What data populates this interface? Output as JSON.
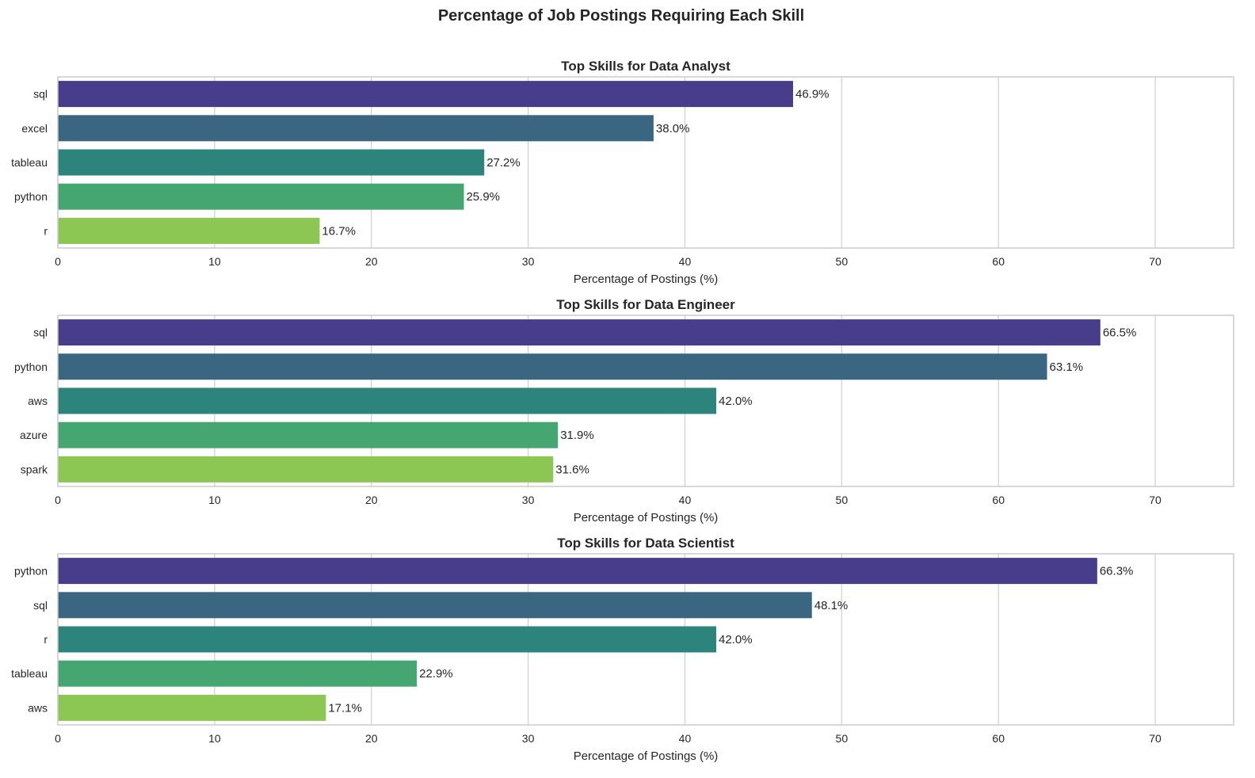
{
  "chart_data": {
    "type": "bar",
    "orientation": "horizontal",
    "title": "Percentage of Job Postings Requiring Each Skill",
    "grid": true,
    "colors": [
      "#483d8b",
      "#3b6682",
      "#2d847d",
      "#45a671",
      "#8cc753"
    ],
    "axis_color": "#cccccc",
    "grid_color": "#cfcfcf",
    "xticks": [
      "0",
      "10",
      "20",
      "30",
      "40",
      "50",
      "60",
      "70"
    ],
    "panels": [
      {
        "title": "Top Skills for Data Analyst",
        "xlabel": "Percentage of Postings (%)",
        "xlim": [
          0,
          75
        ],
        "categories": [
          "sql",
          "excel",
          "tableau",
          "python",
          "r"
        ],
        "values": [
          46.9,
          38.0,
          27.2,
          25.9,
          16.7
        ],
        "labels": [
          "46.9%",
          "38.0%",
          "27.2%",
          "25.9%",
          "16.7%"
        ]
      },
      {
        "title": "Top Skills for Data Engineer",
        "xlabel": "Percentage of Postings (%)",
        "xlim": [
          0,
          75
        ],
        "categories": [
          "sql",
          "python",
          "aws",
          "azure",
          "spark"
        ],
        "values": [
          66.5,
          63.1,
          42.0,
          31.9,
          31.6
        ],
        "labels": [
          "66.5%",
          "63.1%",
          "42.0%",
          "31.9%",
          "31.6%"
        ]
      },
      {
        "title": "Top Skills for Data Scientist",
        "xlabel": "Percentage of Postings (%)",
        "xlim": [
          0,
          75
        ],
        "categories": [
          "python",
          "sql",
          "r",
          "tableau",
          "aws"
        ],
        "values": [
          66.3,
          48.1,
          42.0,
          22.9,
          17.1
        ],
        "labels": [
          "66.3%",
          "48.1%",
          "42.0%",
          "22.9%",
          "17.1%"
        ]
      }
    ]
  }
}
